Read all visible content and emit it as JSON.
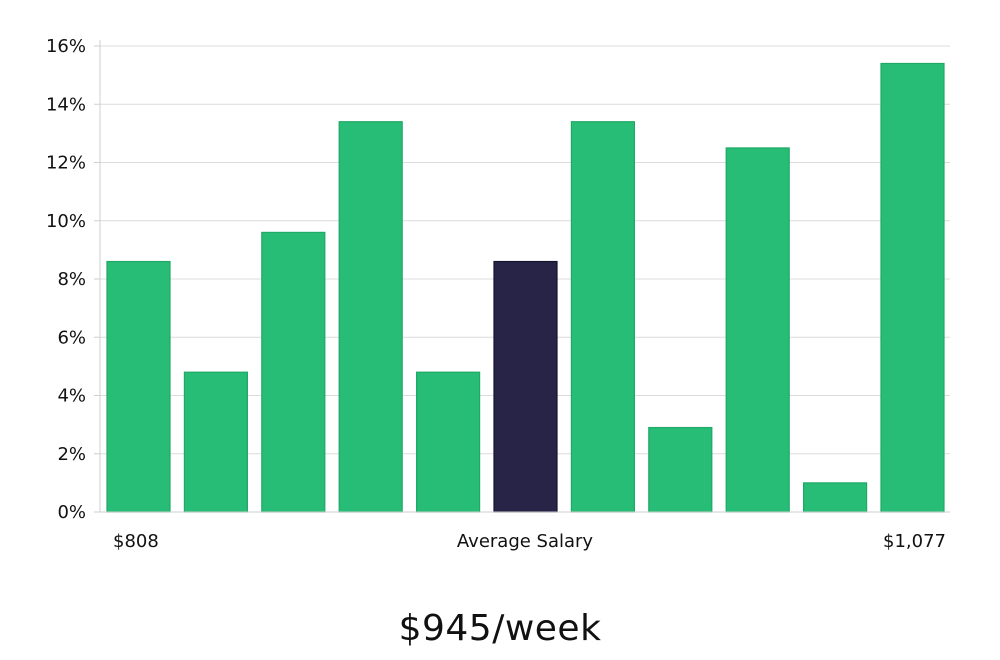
{
  "chart_data": {
    "type": "bar",
    "title": "",
    "ylabel": "",
    "xlabel": "Average Salary",
    "x_range_labels": {
      "min": "$808",
      "max": "$1,077"
    },
    "ylim": [
      0,
      16
    ],
    "y_ticks": [
      "0%",
      "2%",
      "4%",
      "6%",
      "8%",
      "10%",
      "12%",
      "14%",
      "16%"
    ],
    "grid": true,
    "values": [
      8.6,
      4.8,
      9.6,
      13.4,
      4.8,
      8.6,
      13.4,
      2.9,
      12.5,
      1.0,
      15.4
    ],
    "highlight_index": 5,
    "colors": {
      "bar": "#27bd77",
      "highlight": "#272447",
      "highlight_border": "#17152e"
    }
  },
  "summary": {
    "salary": "$945/week"
  }
}
